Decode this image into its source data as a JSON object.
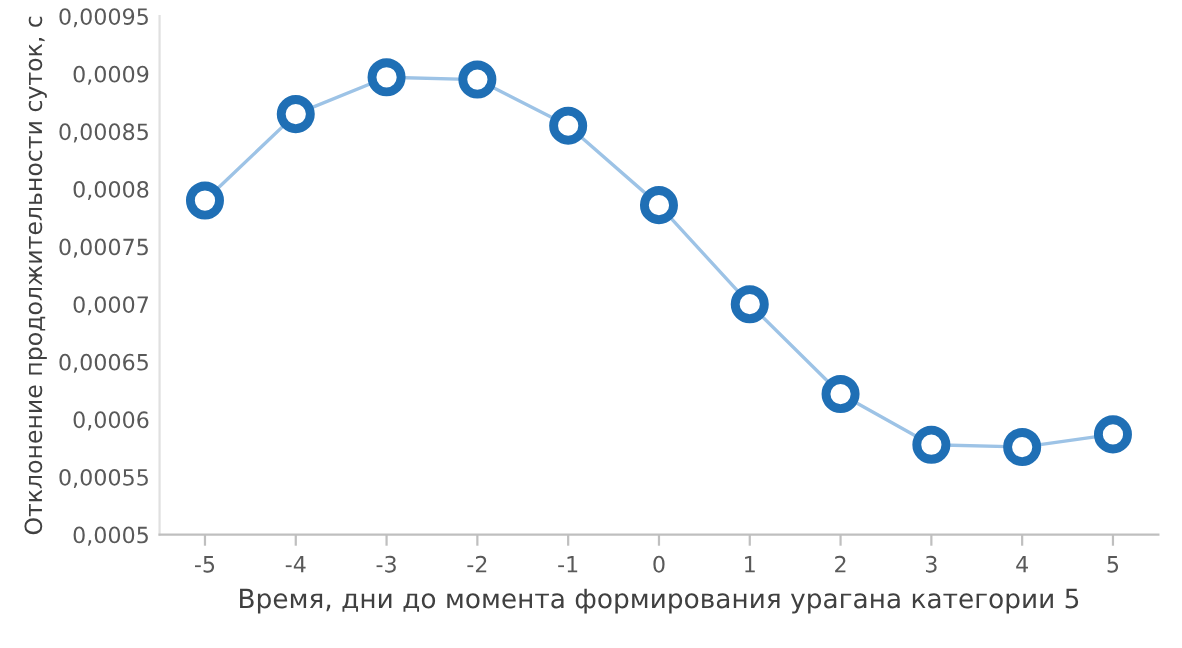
{
  "chart_data": {
    "type": "line",
    "xlabel": "Время, дни до момента формирования урагана категории 5",
    "ylabel": "Отклонение продолжительности суток, с",
    "categories": [
      "-5",
      "-4",
      "-3",
      "-2",
      "-1",
      "0",
      "1",
      "2",
      "3",
      "4",
      "5"
    ],
    "series": [
      {
        "color": "#9dc3e6",
        "colors": [
          "#1f6fb5",
          "#1f6fb5",
          "#1f6fb5",
          "#1f6fb5",
          "#1f6fb5",
          "#1f6fb5",
          "#1f6fb5",
          "#1f6fb5",
          "#1f6fb5",
          "#1f6fb5",
          "#1f6fb5"
        ],
        "values": [
          0.00079,
          0.000865,
          0.000897,
          0.000895,
          0.000855,
          0.000786,
          0.0007,
          0.000622,
          0.000578,
          0.000576,
          0.000587
        ]
      }
    ],
    "ylim": [
      0.0005,
      0.00095
    ],
    "yticks": [
      {
        "value": 0.0005,
        "label": "0,0005"
      },
      {
        "value": 0.00055,
        "label": "0,00055"
      },
      {
        "value": 0.0006,
        "label": "0,0006"
      },
      {
        "value": 0.00065,
        "label": "0,00065"
      },
      {
        "value": 0.0007,
        "label": "0,0007"
      },
      {
        "value": 0.00075,
        "label": "0,00075"
      },
      {
        "value": 0.0008,
        "label": "0,0008"
      },
      {
        "value": 0.00085,
        "label": "0,00085"
      },
      {
        "value": 0.0009,
        "label": "0,0009"
      },
      {
        "value": 0.00095,
        "label": "0,00095"
      }
    ],
    "marker": "circle",
    "grid": false,
    "legend": false
  }
}
